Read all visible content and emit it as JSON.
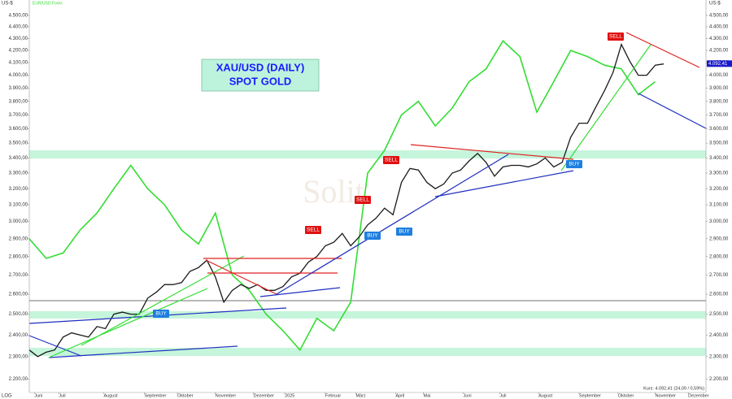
{
  "chart_data": {
    "type": "line",
    "title": "XAU/USD (DAILY)",
    "subtitle": "SPOT GOLD",
    "y_unit": "US-$",
    "scale_label": "LOG",
    "log_scale": true,
    "footer": "Kurs: 4.092,41 (24,09 / 0,59%)",
    "last_price": {
      "value": 4092.41,
      "label": "4.092,41"
    },
    "xlim": [
      0,
      80
    ],
    "xticks": [
      {
        "value": 0.6,
        "label": "Juni"
      },
      {
        "value": 3.5,
        "label": "Juli"
      },
      {
        "value": 8.8,
        "label": "August"
      },
      {
        "value": 13.6,
        "label": "September"
      },
      {
        "value": 17.5,
        "label": "Oktober"
      },
      {
        "value": 22,
        "label": "November"
      },
      {
        "value": 26.5,
        "label": "Dezember"
      },
      {
        "value": 30.2,
        "label": "2025"
      },
      {
        "value": 35,
        "label": "Februar"
      },
      {
        "value": 38.6,
        "label": "März"
      },
      {
        "value": 43.3,
        "label": "April"
      },
      {
        "value": 46.6,
        "label": "Mai"
      },
      {
        "value": 51.3,
        "label": "Juni"
      },
      {
        "value": 55.6,
        "label": "Juli"
      },
      {
        "value": 60.2,
        "label": "August"
      },
      {
        "value": 65,
        "label": "September"
      },
      {
        "value": 69.6,
        "label": "Oktober"
      },
      {
        "value": 74,
        "label": "November"
      },
      {
        "value": 77.9,
        "label": "Dezember"
      }
    ],
    "ylim": [
      2150,
      4550
    ],
    "yticks": [
      {
        "value": 2200,
        "label": "2.200,00"
      },
      {
        "value": 2300,
        "label": "2.300,00"
      },
      {
        "value": 2400,
        "label": "2.400,00"
      },
      {
        "value": 2500,
        "label": "2.500,00"
      },
      {
        "value": 2600,
        "label": "2.600,00"
      },
      {
        "value": 2700,
        "label": "2.700,00"
      },
      {
        "value": 2800,
        "label": "2.800,00"
      },
      {
        "value": 2900,
        "label": "2.900,00"
      },
      {
        "value": 3000,
        "label": "3.000,00"
      },
      {
        "value": 3100,
        "label": "3.100,00"
      },
      {
        "value": 3200,
        "label": "3.200,00"
      },
      {
        "value": 3300,
        "label": "3.300,00"
      },
      {
        "value": 3400,
        "label": "3.400,00"
      },
      {
        "value": 3500,
        "label": "3.500,00"
      },
      {
        "value": 3600,
        "label": "3.600,00"
      },
      {
        "value": 3700,
        "label": "3.700,00"
      },
      {
        "value": 3800,
        "label": "3.800,00"
      },
      {
        "value": 3900,
        "label": "3.900,00"
      },
      {
        "value": 4000,
        "label": "4.000,00"
      },
      {
        "value": 4100,
        "label": "4.100,00"
      },
      {
        "value": 4200,
        "label": "4.200,00"
      },
      {
        "value": 4300,
        "label": "4.300,00"
      },
      {
        "value": 4400,
        "label": "4.400,00"
      },
      {
        "value": 4500,
        "label": "4.500,00"
      }
    ],
    "series": [
      {
        "color": "#1a1a1a",
        "x": [
          0,
          1,
          2,
          3,
          4,
          5,
          6,
          7,
          8,
          9,
          10,
          11,
          12,
          13,
          14,
          15,
          16,
          17,
          18,
          19,
          20,
          21,
          22,
          23,
          24,
          25,
          26,
          27,
          28,
          29,
          30,
          31,
          32,
          33,
          34,
          35,
          36,
          37,
          38,
          39,
          40,
          41,
          42,
          43,
          44,
          45,
          46,
          47,
          48,
          49,
          50,
          51,
          52,
          53,
          54,
          55,
          56,
          57,
          58,
          59,
          60,
          61,
          62,
          63,
          64,
          65,
          66,
          67,
          68,
          69,
          70,
          71,
          72,
          73,
          74,
          75
        ],
        "values": [
          2330,
          2300,
          2320,
          2330,
          2390,
          2410,
          2400,
          2390,
          2440,
          2430,
          2500,
          2510,
          2500,
          2500,
          2580,
          2610,
          2650,
          2650,
          2660,
          2720,
          2740,
          2780,
          2690,
          2560,
          2620,
          2650,
          2630,
          2650,
          2620,
          2620,
          2640,
          2690,
          2710,
          2770,
          2800,
          2860,
          2880,
          2930,
          2860,
          2910,
          2980,
          3020,
          3080,
          3040,
          3240,
          3330,
          3320,
          3240,
          3200,
          3230,
          3300,
          3320,
          3380,
          3430,
          3370,
          3280,
          3340,
          3350,
          3350,
          3340,
          3360,
          3400,
          3340,
          3370,
          3540,
          3640,
          3640,
          3760,
          3880,
          4020,
          4250,
          4110,
          4000,
          4000,
          4080,
          4090
        ]
      },
      {
        "name": "EUR/USD Forex",
        "color": "#33dd33",
        "x": [
          0,
          2,
          4,
          6,
          8,
          10,
          12,
          14,
          16,
          18,
          20,
          22,
          24,
          26,
          28,
          30,
          32,
          34,
          36,
          38,
          40,
          42,
          44,
          46,
          48,
          50,
          52,
          54,
          56,
          58,
          60,
          62,
          64,
          66,
          68,
          70,
          72,
          74
        ],
        "values": [
          2900,
          2790,
          2820,
          2950,
          3050,
          3200,
          3350,
          3200,
          3100,
          2950,
          2870,
          3050,
          2700,
          2620,
          2500,
          2420,
          2330,
          2480,
          2420,
          2560,
          3300,
          3450,
          3700,
          3800,
          3620,
          3750,
          3950,
          4050,
          4280,
          4150,
          3720,
          3950,
          4200,
          4150,
          4080,
          4050,
          3850,
          3950
        ]
      }
    ],
    "signals": [
      "SELL",
      "SELL",
      "SELL",
      "SELL",
      "BUY",
      "BUY",
      "BUY",
      "BUY"
    ]
  }
}
